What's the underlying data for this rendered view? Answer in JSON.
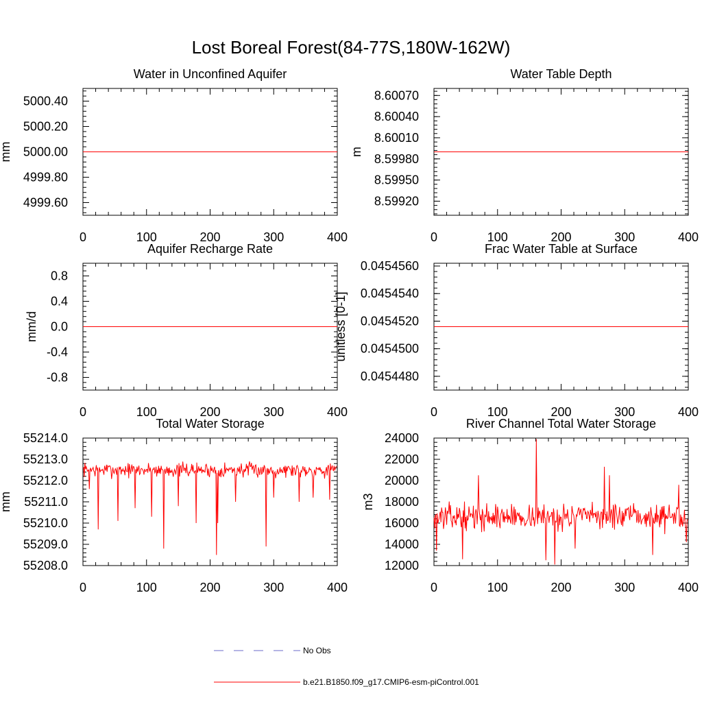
{
  "figure_title": "Lost Boreal Forest(84-77S,180W-162W)",
  "legend": {
    "entries": [
      {
        "label": "No Obs",
        "style": "dashed",
        "color": "#6b6bc8"
      },
      {
        "label": "b.e21.B1850.f09_g17.CMIP6-esm-piControl.001",
        "style": "solid",
        "color": "#ff0000"
      }
    ]
  },
  "chart_data": [
    {
      "type": "line",
      "title": "Water in Unconfined Aquifer",
      "xlabel": "",
      "ylabel": "mm",
      "xlim": [
        0,
        400
      ],
      "ylim": [
        4999.5,
        5000.5
      ],
      "xticks": [
        0,
        100,
        200,
        300,
        400
      ],
      "xtick_labels": [
        "0",
        "100",
        "200",
        "300",
        "400"
      ],
      "yticks": [
        4999.6,
        4999.8,
        5000.0,
        5000.2,
        5000.4
      ],
      "ytick_labels": [
        "4999.60",
        "4999.80",
        "5000.00",
        "5000.20",
        "5000.40"
      ],
      "series": [
        {
          "name": "b.e21.B1850.f09_g17.CMIP6-esm-piControl.001",
          "kind": "constant",
          "value": 5000.0,
          "color": "#ff0000"
        }
      ]
    },
    {
      "type": "line",
      "title": "Water Table Depth",
      "xlabel": "",
      "ylabel": "m",
      "xlim": [
        0,
        400
      ],
      "ylim": [
        8.599,
        8.6008
      ],
      "xticks": [
        0,
        100,
        200,
        300,
        400
      ],
      "xtick_labels": [
        "0",
        "100",
        "200",
        "300",
        "400"
      ],
      "yticks": [
        8.5992,
        8.5995,
        8.5998,
        8.6001,
        8.6004,
        8.6007
      ],
      "ytick_labels": [
        "8.59920",
        "8.59950",
        "8.59980",
        "8.60010",
        "8.60040",
        "8.60070"
      ],
      "series": [
        {
          "name": "b.e21.B1850.f09_g17.CMIP6-esm-piControl.001",
          "kind": "constant",
          "value": 8.5999,
          "color": "#ff0000"
        }
      ]
    },
    {
      "type": "line",
      "title": "Aquifer Recharge Rate",
      "xlabel": "",
      "ylabel": "mm/d",
      "xlim": [
        0,
        400
      ],
      "ylim": [
        -1.0,
        1.0
      ],
      "xticks": [
        0,
        100,
        200,
        300,
        400
      ],
      "xtick_labels": [
        "0",
        "100",
        "200",
        "300",
        "400"
      ],
      "yticks": [
        -0.8,
        -0.4,
        0.0,
        0.4,
        0.8
      ],
      "ytick_labels": [
        "-0.8",
        "-0.4",
        "0.0",
        "0.4",
        "0.8"
      ],
      "series": [
        {
          "name": "b.e21.B1850.f09_g17.CMIP6-esm-piControl.001",
          "kind": "constant",
          "value": 0.0,
          "color": "#ff0000"
        }
      ]
    },
    {
      "type": "line",
      "title": "Frac Water Table at Surface",
      "xlabel": "",
      "ylabel": "unitless [0-1]",
      "xlim": [
        0,
        400
      ],
      "ylim": [
        0.045447,
        0.0454562
      ],
      "xticks": [
        0,
        100,
        200,
        300,
        400
      ],
      "xtick_labels": [
        "0",
        "100",
        "200",
        "300",
        "400"
      ],
      "yticks": [
        0.045448,
        0.04545,
        0.045452,
        0.045454,
        0.045456
      ],
      "ytick_labels": [
        "0.0454480",
        "0.0454500",
        "0.0454520",
        "0.0454540",
        "0.0454560"
      ],
      "series": [
        {
          "name": "b.e21.B1850.f09_g17.CMIP6-esm-piControl.001",
          "kind": "constant",
          "value": 0.0454516,
          "color": "#ff0000"
        }
      ]
    },
    {
      "type": "line",
      "title": "Total Water Storage",
      "xlabel": "",
      "ylabel": "mm",
      "xlim": [
        0,
        400
      ],
      "ylim": [
        55208.0,
        55214.0
      ],
      "xticks": [
        0,
        100,
        200,
        300,
        400
      ],
      "xtick_labels": [
        "0",
        "100",
        "200",
        "300",
        "400"
      ],
      "yticks": [
        55208.0,
        55209.0,
        55210.0,
        55211.0,
        55212.0,
        55213.0,
        55214.0
      ],
      "ytick_labels": [
        "55208.0",
        "55209.0",
        "55210.0",
        "55211.0",
        "55212.0",
        "55213.0",
        "55214.0"
      ],
      "series": [
        {
          "name": "b.e21.B1850.f09_g17.CMIP6-esm-piControl.001",
          "kind": "noisy",
          "n": 400,
          "base": 55212.5,
          "amplitude": 0.5,
          "seed": 7,
          "dips": [
            [
              10,
              55211.6
            ],
            [
              24,
              55209.7
            ],
            [
              55,
              55210.1
            ],
            [
              82,
              55210.7
            ],
            [
              108,
              55210.3
            ],
            [
              127,
              55208.8
            ],
            [
              150,
              55210.8
            ],
            [
              178,
              55210.0
            ],
            [
              210,
              55208.5
            ],
            [
              212,
              55210.0
            ],
            [
              240,
              55211.0
            ],
            [
              288,
              55208.9
            ],
            [
              300,
              55211.2
            ],
            [
              340,
              55211.0
            ],
            [
              362,
              55211.2
            ],
            [
              388,
              55211.1
            ]
          ],
          "color": "#ff0000"
        }
      ]
    },
    {
      "type": "line",
      "title": "River Channel Total Water Storage",
      "xlabel": "",
      "ylabel": "m3",
      "xlim": [
        0,
        400
      ],
      "ylim": [
        12000,
        24000
      ],
      "xticks": [
        0,
        100,
        200,
        300,
        400
      ],
      "xtick_labels": [
        "0",
        "100",
        "200",
        "300",
        "400"
      ],
      "yticks": [
        12000,
        14000,
        16000,
        18000,
        20000,
        22000,
        24000
      ],
      "ytick_labels": [
        "12000",
        "14000",
        "16000",
        "18000",
        "20000",
        "22000",
        "24000"
      ],
      "series": [
        {
          "name": "b.e21.B1850.f09_g17.CMIP6-esm-piControl.001",
          "kind": "noisy",
          "n": 400,
          "base": 16600,
          "amplitude": 1700,
          "seed": 13,
          "dips": [
            [
              4,
              13400
            ],
            [
              45,
              12600
            ],
            [
              70,
              20500
            ],
            [
              161,
              23900
            ],
            [
              176,
              12500
            ],
            [
              190,
              12100
            ],
            [
              222,
              13600
            ],
            [
              268,
              21300
            ],
            [
              276,
              20500
            ],
            [
              344,
              13000
            ],
            [
              385,
              19600
            ],
            [
              397,
              14200
            ]
          ],
          "color": "#ff0000"
        }
      ]
    }
  ]
}
